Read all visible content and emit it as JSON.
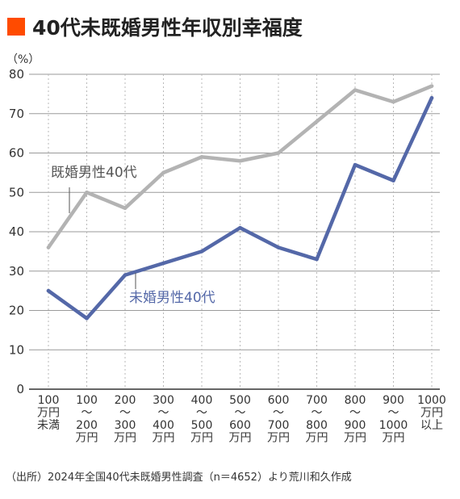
{
  "header": {
    "title": "40代未既婚男性年収別幸福度"
  },
  "footer": {
    "source": "（出所）2024年全国40代未既婚男性調査（n＝4652）より荒川和久作成"
  },
  "colors": {
    "accent": "#ff4b00",
    "married": "#b3b3b3",
    "unmarried": "#5468a8",
    "grid": "#9a9a9a",
    "axis": "#333333"
  },
  "chart_data": {
    "type": "line",
    "title": "40代未既婚男性年収別幸福度",
    "unit_label": "（%）",
    "ylim": [
      0,
      80
    ],
    "yticks": [
      0,
      10,
      20,
      30,
      40,
      50,
      60,
      70,
      80
    ],
    "grid": true,
    "categories": [
      [
        "100",
        "万円",
        "未満"
      ],
      [
        "100",
        "〜",
        "200",
        "万円"
      ],
      [
        "200",
        "〜",
        "300",
        "万円"
      ],
      [
        "300",
        "〜",
        "400",
        "万円"
      ],
      [
        "400",
        "〜",
        "500",
        "万円"
      ],
      [
        "500",
        "〜",
        "600",
        "万円"
      ],
      [
        "600",
        "〜",
        "700",
        "万円"
      ],
      [
        "700",
        "〜",
        "800",
        "万円"
      ],
      [
        "800",
        "〜",
        "900",
        "万円"
      ],
      [
        "900",
        "〜",
        "1000",
        "万円"
      ],
      [
        "1000",
        "万円",
        "以上"
      ]
    ],
    "series": [
      {
        "name": "既婚男性40代",
        "color": "#b3b3b3",
        "values": [
          36,
          50,
          46,
          55,
          59,
          58,
          60,
          68,
          76,
          73,
          77
        ]
      },
      {
        "name": "未婚男性40代",
        "color": "#5468a8",
        "values": [
          25,
          18,
          29,
          32,
          35,
          41,
          36,
          33,
          57,
          53,
          74
        ]
      }
    ]
  }
}
